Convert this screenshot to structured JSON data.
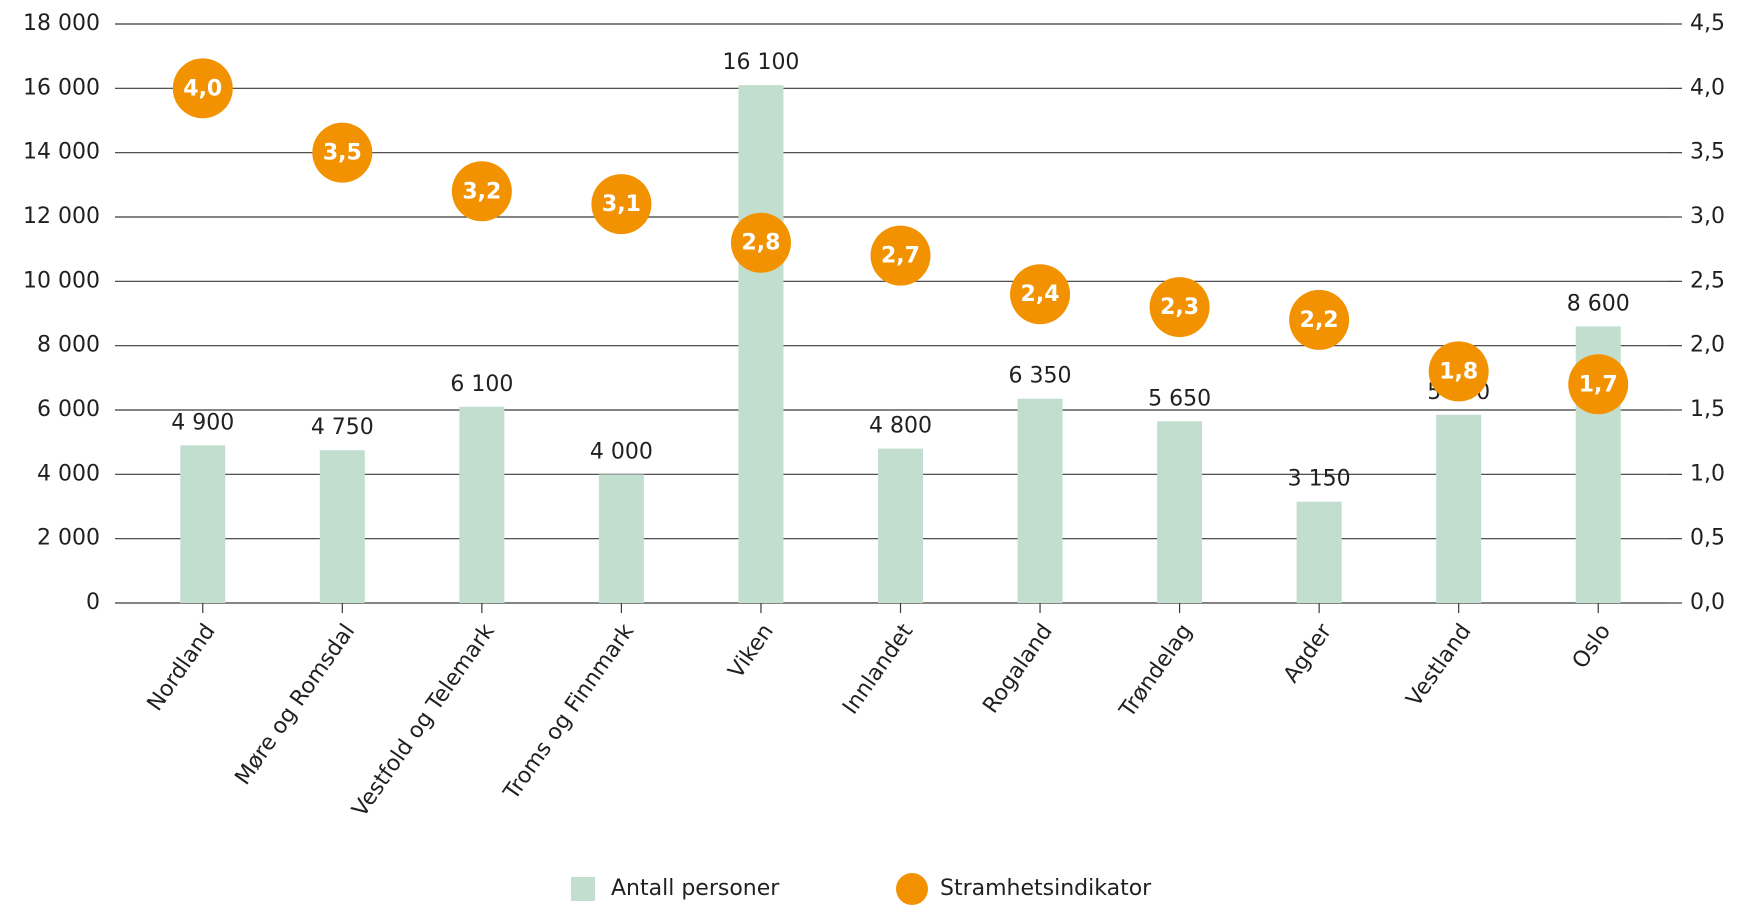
{
  "chart_data": {
    "type": "bar",
    "categories": [
      "Nordland",
      "Møre og Romsdal",
      "Vestfold og Telemark",
      "Troms og Finnmark",
      "Viken",
      "Innlandet",
      "Rogaland",
      "Trøndelag",
      "Agder",
      "Vestland",
      "Oslo"
    ],
    "series": [
      {
        "name": "Antall personer",
        "color": "#c2decf",
        "type": "bar",
        "values": [
          4900,
          4750,
          6100,
          4000,
          16100,
          4800,
          6350,
          5650,
          3150,
          5850,
          8600
        ],
        "value_labels": [
          "4 900",
          "4 750",
          "6 100",
          "4 000",
          "16 100",
          "4 800",
          "6 350",
          "5 650",
          "3 150",
          "5 850",
          "8 600"
        ]
      },
      {
        "name": "Stramhetsindikator",
        "color": "#f39200",
        "type": "scatter",
        "axis": "y2",
        "values": [
          4.0,
          3.5,
          3.2,
          3.1,
          2.8,
          2.7,
          2.4,
          2.3,
          2.2,
          1.8,
          1.7
        ],
        "value_labels": [
          "4,0",
          "3,5",
          "3,2",
          "3,1",
          "2,8",
          "2,7",
          "2,4",
          "2,3",
          "2,2",
          "1,8",
          "1,7"
        ]
      }
    ],
    "ylim": [
      0,
      18000
    ],
    "yticks": [
      0,
      {
        "value": 2000,
        "label": "2 000"
      },
      {
        "value": 4000,
        "label": "4 000"
      },
      {
        "value": 6000,
        "label": "6 000"
      },
      {
        "value": 8000,
        "label": "8 000"
      },
      {
        "value": 10000,
        "label": "10 000"
      },
      {
        "value": 12000,
        "label": "12 000"
      },
      {
        "value": 14000,
        "label": "14 000"
      },
      {
        "value": 16000,
        "label": "16 000"
      },
      {
        "value": 18000,
        "label": "18 000"
      }
    ],
    "y2lim": [
      0,
      4.5
    ],
    "y2ticks": [
      {
        "value": 0,
        "label": "0,0"
      },
      {
        "value": 0.5,
        "label": "0,5"
      },
      {
        "value": 1,
        "label": "1,0"
      },
      {
        "value": 1.5,
        "label": "1,5"
      },
      {
        "value": 2,
        "label": "2,0"
      },
      {
        "value": 2.5,
        "label": "2,5"
      },
      {
        "value": 3,
        "label": "3,0"
      },
      {
        "value": 3.5,
        "label": "3,5"
      },
      {
        "value": 4,
        "label": "4,0"
      },
      {
        "value": 4.5,
        "label": "4,5"
      }
    ],
    "grid": true,
    "legend": "bottom"
  }
}
